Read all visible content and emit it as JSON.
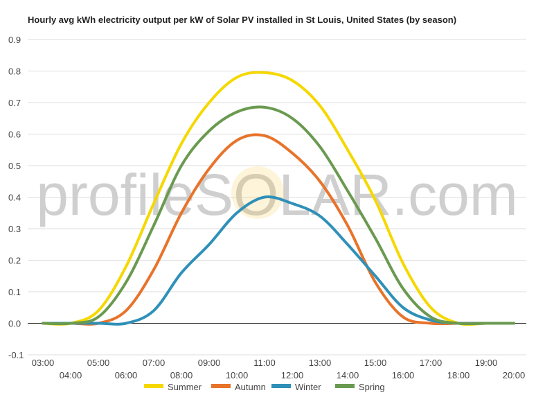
{
  "chart_data": {
    "type": "line",
    "title": "Hourly avg kWh electricity output per kW of Solar PV installed in St Louis, United States (by season)",
    "watermark": "profileSOLAR.com",
    "x": [
      "03:00",
      "04:00",
      "05:00",
      "06:00",
      "07:00",
      "08:00",
      "09:00",
      "10:00",
      "11:00",
      "12:00",
      "13:00",
      "14:00",
      "15:00",
      "16:00",
      "17:00",
      "18:00",
      "19:00",
      "20:00"
    ],
    "xtick_labels": [
      "03:00",
      "04:00",
      "05:00",
      "06:00",
      "07:00",
      "08:00",
      "09:00",
      "10:00",
      "11:00",
      "12:00",
      "13:00",
      "14:00",
      "15:00",
      "16:00",
      "17:00",
      "18:00",
      "19:00",
      "20:00"
    ],
    "ylim": [
      -0.1,
      0.9
    ],
    "yticks": [
      "0.9",
      "0.8",
      "0.7",
      "0.6",
      "0.5",
      "0.4",
      "0.3",
      "0.2",
      "0.1",
      "0.0",
      "-0.1"
    ],
    "ytick_values": [
      0.9,
      0.8,
      0.7,
      0.6,
      0.5,
      0.4,
      0.3,
      0.2,
      0.1,
      0.0,
      -0.1
    ],
    "grid": true,
    "legend_position": "bottom",
    "series": [
      {
        "name": "Summer",
        "color": "#f5d800",
        "values": [
          0.0,
          0.0,
          0.04,
          0.18,
          0.38,
          0.57,
          0.7,
          0.78,
          0.795,
          0.77,
          0.69,
          0.55,
          0.39,
          0.19,
          0.05,
          0.0,
          0.0,
          0.0
        ]
      },
      {
        "name": "Autumn",
        "color": "#e8732a",
        "values": [
          0.0,
          0.0,
          0.0,
          0.04,
          0.17,
          0.35,
          0.49,
          0.58,
          0.595,
          0.54,
          0.45,
          0.31,
          0.13,
          0.02,
          0.0,
          0.0,
          0.0,
          0.0
        ]
      },
      {
        "name": "Winter",
        "color": "#2f90b8",
        "values": [
          0.0,
          0.0,
          0.0,
          0.0,
          0.04,
          0.16,
          0.25,
          0.35,
          0.4,
          0.38,
          0.34,
          0.25,
          0.15,
          0.05,
          0.01,
          0.0,
          0.0,
          0.0
        ]
      },
      {
        "name": "Spring",
        "color": "#6a9a50",
        "values": [
          0.0,
          0.0,
          0.02,
          0.13,
          0.31,
          0.5,
          0.61,
          0.67,
          0.685,
          0.65,
          0.56,
          0.42,
          0.27,
          0.11,
          0.02,
          0.0,
          0.0,
          0.0
        ]
      }
    ]
  }
}
